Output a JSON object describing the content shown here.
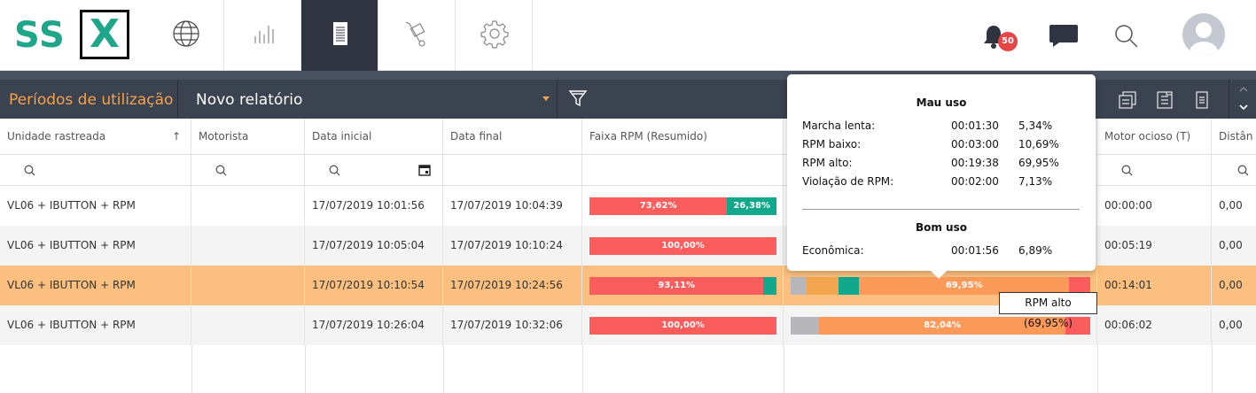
{
  "logo": {
    "left": "SS",
    "right": "X"
  },
  "nav": {
    "items": [
      {
        "icon": "globe-icon"
      },
      {
        "icon": "bar-chart-icon"
      },
      {
        "icon": "report-icon",
        "active": true
      },
      {
        "icon": "hand-truck-icon"
      },
      {
        "icon": "gear-icon"
      }
    ],
    "notifications_count": "50"
  },
  "reportbar": {
    "title": "Períodos de utilização",
    "report_select": "Novo relatório"
  },
  "table": {
    "columns": [
      "Unidade rastreada",
      "Motorista",
      "Data inicial",
      "Data final",
      "Faixa RPM (Resumido)",
      "",
      "Motor ocioso (T)",
      "Distân"
    ],
    "rows": [
      {
        "unidade": "VL06 + IBUTTON + RPM",
        "motorista": "",
        "data_inicial": "17/07/2019 10:01:56",
        "data_final": "17/07/2019 10:04:39",
        "resumo": [
          {
            "label": "73,62%",
            "pct": 73.62,
            "color": "red"
          },
          {
            "label": "26,38%",
            "pct": 26.38,
            "color": "teal"
          }
        ],
        "detalhe": [],
        "ocioso": "00:00:00",
        "distancia": "0,00"
      },
      {
        "unidade": "VL06 + IBUTTON + RPM",
        "motorista": "",
        "data_inicial": "17/07/2019 10:05:04",
        "data_final": "17/07/2019 10:10:24",
        "resumo": [
          {
            "label": "100,00%",
            "pct": 100,
            "color": "red"
          }
        ],
        "detalhe": [],
        "ocioso": "00:05:19",
        "distancia": "0,00"
      },
      {
        "unidade": "VL06 + IBUTTON + RPM",
        "motorista": "",
        "data_inicial": "17/07/2019 10:10:54",
        "data_final": "17/07/2019 10:24:56",
        "resumo": [
          {
            "label": "93,11%",
            "pct": 93.11,
            "color": "red"
          },
          {
            "label": "",
            "pct": 6.89,
            "color": "teal"
          }
        ],
        "detalhe": [
          {
            "label": "",
            "pct": 5.34,
            "color": "gray"
          },
          {
            "label": "",
            "pct": 10.69,
            "color": "ambar"
          },
          {
            "label": "",
            "pct": 6.89,
            "color": "teal"
          },
          {
            "label": "69,95%",
            "pct": 69.95,
            "color": "orange"
          },
          {
            "label": "",
            "pct": 7.13,
            "color": "red"
          }
        ],
        "ocioso": "00:14:01",
        "distancia": "0,00",
        "selected": true
      },
      {
        "unidade": "VL06 + IBUTTON + RPM",
        "motorista": "",
        "data_inicial": "17/07/2019 10:26:04",
        "data_final": "17/07/2019 10:32:06",
        "resumo": [
          {
            "label": "100,00%",
            "pct": 100,
            "color": "red"
          }
        ],
        "detalhe": [
          {
            "label": "",
            "pct": 9.6,
            "color": "gray"
          },
          {
            "label": "82,04%",
            "pct": 82.04,
            "color": "orange"
          },
          {
            "label": "",
            "pct": 8.36,
            "color": "red"
          }
        ],
        "ocioso": "00:06:02",
        "distancia": "0,00"
      }
    ]
  },
  "popup": {
    "mau_uso_title": "Mau uso",
    "mau_uso": [
      {
        "label": "Marcha lenta:",
        "time": "00:01:30",
        "pct": "5,34%"
      },
      {
        "label": "RPM baixo:",
        "time": "00:03:00",
        "pct": "10,69%"
      },
      {
        "label": "RPM alto:",
        "time": "00:19:38",
        "pct": "69,95%"
      },
      {
        "label": "Violação de RPM:",
        "time": "00:02:00",
        "pct": "7,13%"
      }
    ],
    "bom_uso_title": "Bom uso",
    "bom_uso": [
      {
        "label": "Econômica:",
        "time": "00:01:56",
        "pct": "6,89%"
      }
    ]
  },
  "hover_tooltip": "RPM alto (69,95%)",
  "colors": {
    "brand_green": "#1fa68a",
    "accent_orange": "#f5a24e",
    "selected_row": "#fbc07f",
    "bar_red": "#fb5c5c",
    "bar_teal": "#12a88c",
    "bar_orange": "#fd9a5a",
    "bar_gray": "#b6b6bb",
    "dark_nav": "#2f3440"
  }
}
